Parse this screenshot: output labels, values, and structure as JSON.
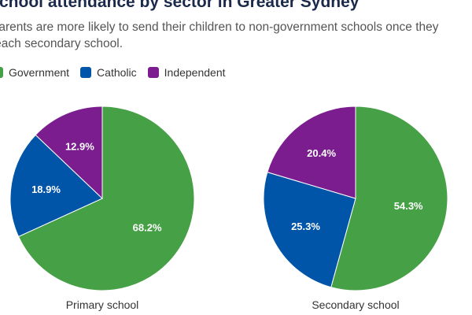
{
  "title": "School attendance by sector in Greater Sydney",
  "subtitle": "Parents are more likely to send their children to non-government schools once they reach secondary school.",
  "legend": [
    {
      "label": "Government",
      "color": "#46a046"
    },
    {
      "label": "Catholic",
      "color": "#0055a8"
    },
    {
      "label": "Independent",
      "color": "#7b1d8f"
    }
  ],
  "chart_data": [
    {
      "type": "pie",
      "label": "Primary school",
      "slices": [
        {
          "name": "Government",
          "value": 68.2,
          "label": "68.2%"
        },
        {
          "name": "Catholic",
          "value": 18.9,
          "label": "18.9%"
        },
        {
          "name": "Independent",
          "value": 12.9,
          "label": "12.9%"
        }
      ]
    },
    {
      "type": "pie",
      "label": "Secondary school",
      "slices": [
        {
          "name": "Government",
          "value": 54.3,
          "label": "54.3%"
        },
        {
          "name": "Catholic",
          "value": 25.3,
          "label": "25.3%"
        },
        {
          "name": "Independent",
          "value": 20.4,
          "label": "20.4%"
        }
      ]
    }
  ]
}
